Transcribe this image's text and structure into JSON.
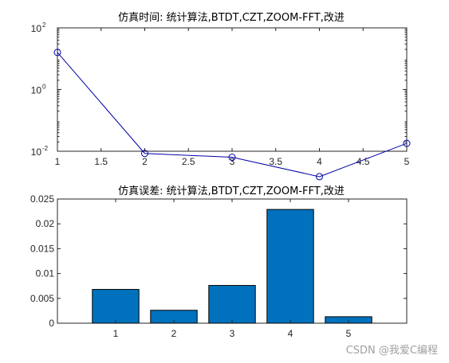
{
  "chart_data": [
    {
      "type": "line",
      "title": "仿真时间: 统计算法,BTDT,CZT,ZOOM-FFT,改进",
      "x": [
        1,
        2,
        3,
        4,
        5
      ],
      "series": [
        {
          "values": [
            16,
            0.0085,
            0.0064,
            0.0015,
            0.018
          ]
        }
      ],
      "xlim": [
        1,
        5
      ],
      "ylim": [
        0.01,
        100
      ],
      "yscale": "log",
      "xticks": [
        "1",
        "1.5",
        "2",
        "2.5",
        "3",
        "3.5",
        "4",
        "4.5",
        "5"
      ],
      "yticks": [
        {
          "base": "10",
          "exp": "-2",
          "value": 0.01
        },
        {
          "base": "10",
          "exp": "0",
          "value": 1
        },
        {
          "base": "10",
          "exp": "2",
          "value": 100
        }
      ],
      "line_color": "#0000a8",
      "marker": "circle",
      "grid": false
    },
    {
      "type": "bar",
      "title": "仿真误差: 统计算法,BTDT,CZT,ZOOM-FFT,改进",
      "categories": [
        "1",
        "2",
        "3",
        "4",
        "5"
      ],
      "values": [
        0.0068,
        0.0026,
        0.0076,
        0.0229,
        0.0013
      ],
      "xlim": [
        0,
        6
      ],
      "ylim": [
        0,
        0.025
      ],
      "yticks": [
        "0",
        "0.005",
        "0.01",
        "0.015",
        "0.02",
        "0.025"
      ],
      "bar_color": "#0072bd",
      "grid": false
    }
  ],
  "watermark": "CSDN @我爱C编程"
}
